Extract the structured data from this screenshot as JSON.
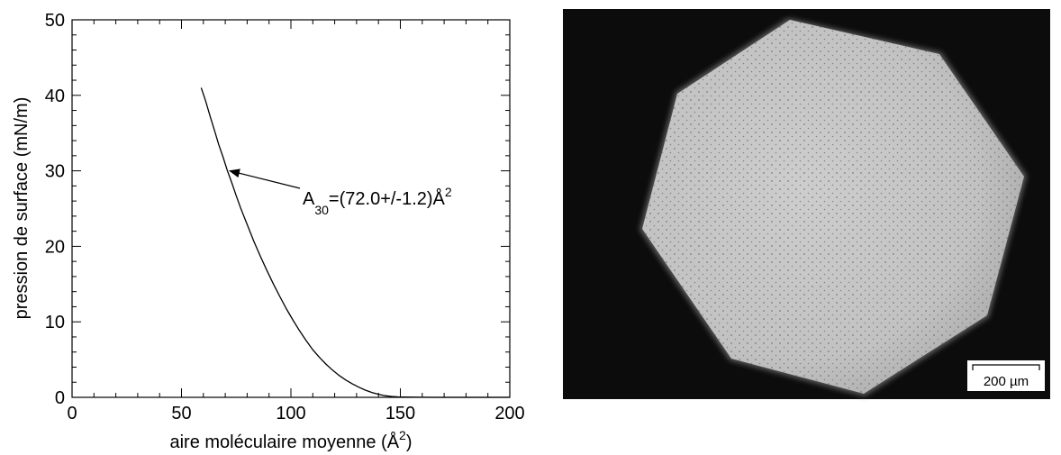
{
  "chart_data": {
    "type": "line",
    "xlabel": "aire moléculaire moyenne (Å",
    "xlabel_superscript": "2",
    "xlabel_close": ")",
    "ylabel": "pression de surface (mN/m)",
    "xlim": [
      0,
      200
    ],
    "ylim": [
      0,
      50
    ],
    "x_ticks": [
      0,
      50,
      100,
      150,
      200
    ],
    "y_ticks": [
      0,
      10,
      20,
      30,
      40,
      50
    ],
    "x_minor_step": 10,
    "y_minor_step": 2,
    "grid": false,
    "series": [
      {
        "color": "#000000",
        "x": [
          59,
          61,
          63,
          65,
          67,
          69,
          71,
          73,
          75,
          77,
          80,
          83,
          86,
          89,
          92,
          95,
          98,
          101,
          104,
          107,
          110,
          113,
          116,
          119,
          122,
          125,
          128,
          131,
          134,
          137,
          140,
          143,
          146,
          149,
          152,
          155,
          160,
          165,
          170,
          180,
          190,
          200
        ],
        "y": [
          41.0,
          39.3,
          37.3,
          35.4,
          33.5,
          31.8,
          30.0,
          28.4,
          26.7,
          25.1,
          22.9,
          20.7,
          18.7,
          16.8,
          15.0,
          13.3,
          11.7,
          10.2,
          8.8,
          7.5,
          6.3,
          5.3,
          4.4,
          3.6,
          2.9,
          2.3,
          1.8,
          1.35,
          0.95,
          0.65,
          0.4,
          0.22,
          0.12,
          0.06,
          0.03,
          0.02,
          0.01,
          0.0,
          0.0,
          0.0,
          0.0,
          0.0
        ]
      }
    ],
    "annotation": {
      "text_main": "A",
      "text_subscript": "30",
      "text_rest": "=(72.0+/-1.2)Å",
      "text_superscript": "2",
      "arrow_target": {
        "x": 72,
        "y": 30
      }
    }
  },
  "micrograph": {
    "scale_bar_label": "200 µm",
    "background_color": "#0c0c0c",
    "region_color": "#c8c8c8"
  }
}
